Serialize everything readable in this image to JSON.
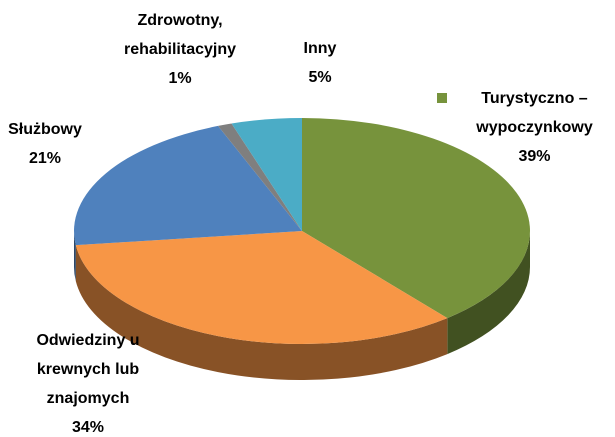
{
  "chart_data": {
    "type": "pie",
    "categories": [
      "Turystyczno – wypoczynkowy",
      "Odwiedziny u krewnych lub znajomych",
      "Służbowy",
      "Zdrowotny, rehabilitacyjny",
      "Inny"
    ],
    "values": [
      39,
      34,
      21,
      1,
      5
    ],
    "value_labels": [
      "39%",
      "34%",
      "21%",
      "1%",
      "5%"
    ],
    "colors": [
      "#77933c",
      "#f79646",
      "#4f81bd",
      "#7f7f7f",
      "#4bacc6"
    ],
    "three_d": true
  }
}
